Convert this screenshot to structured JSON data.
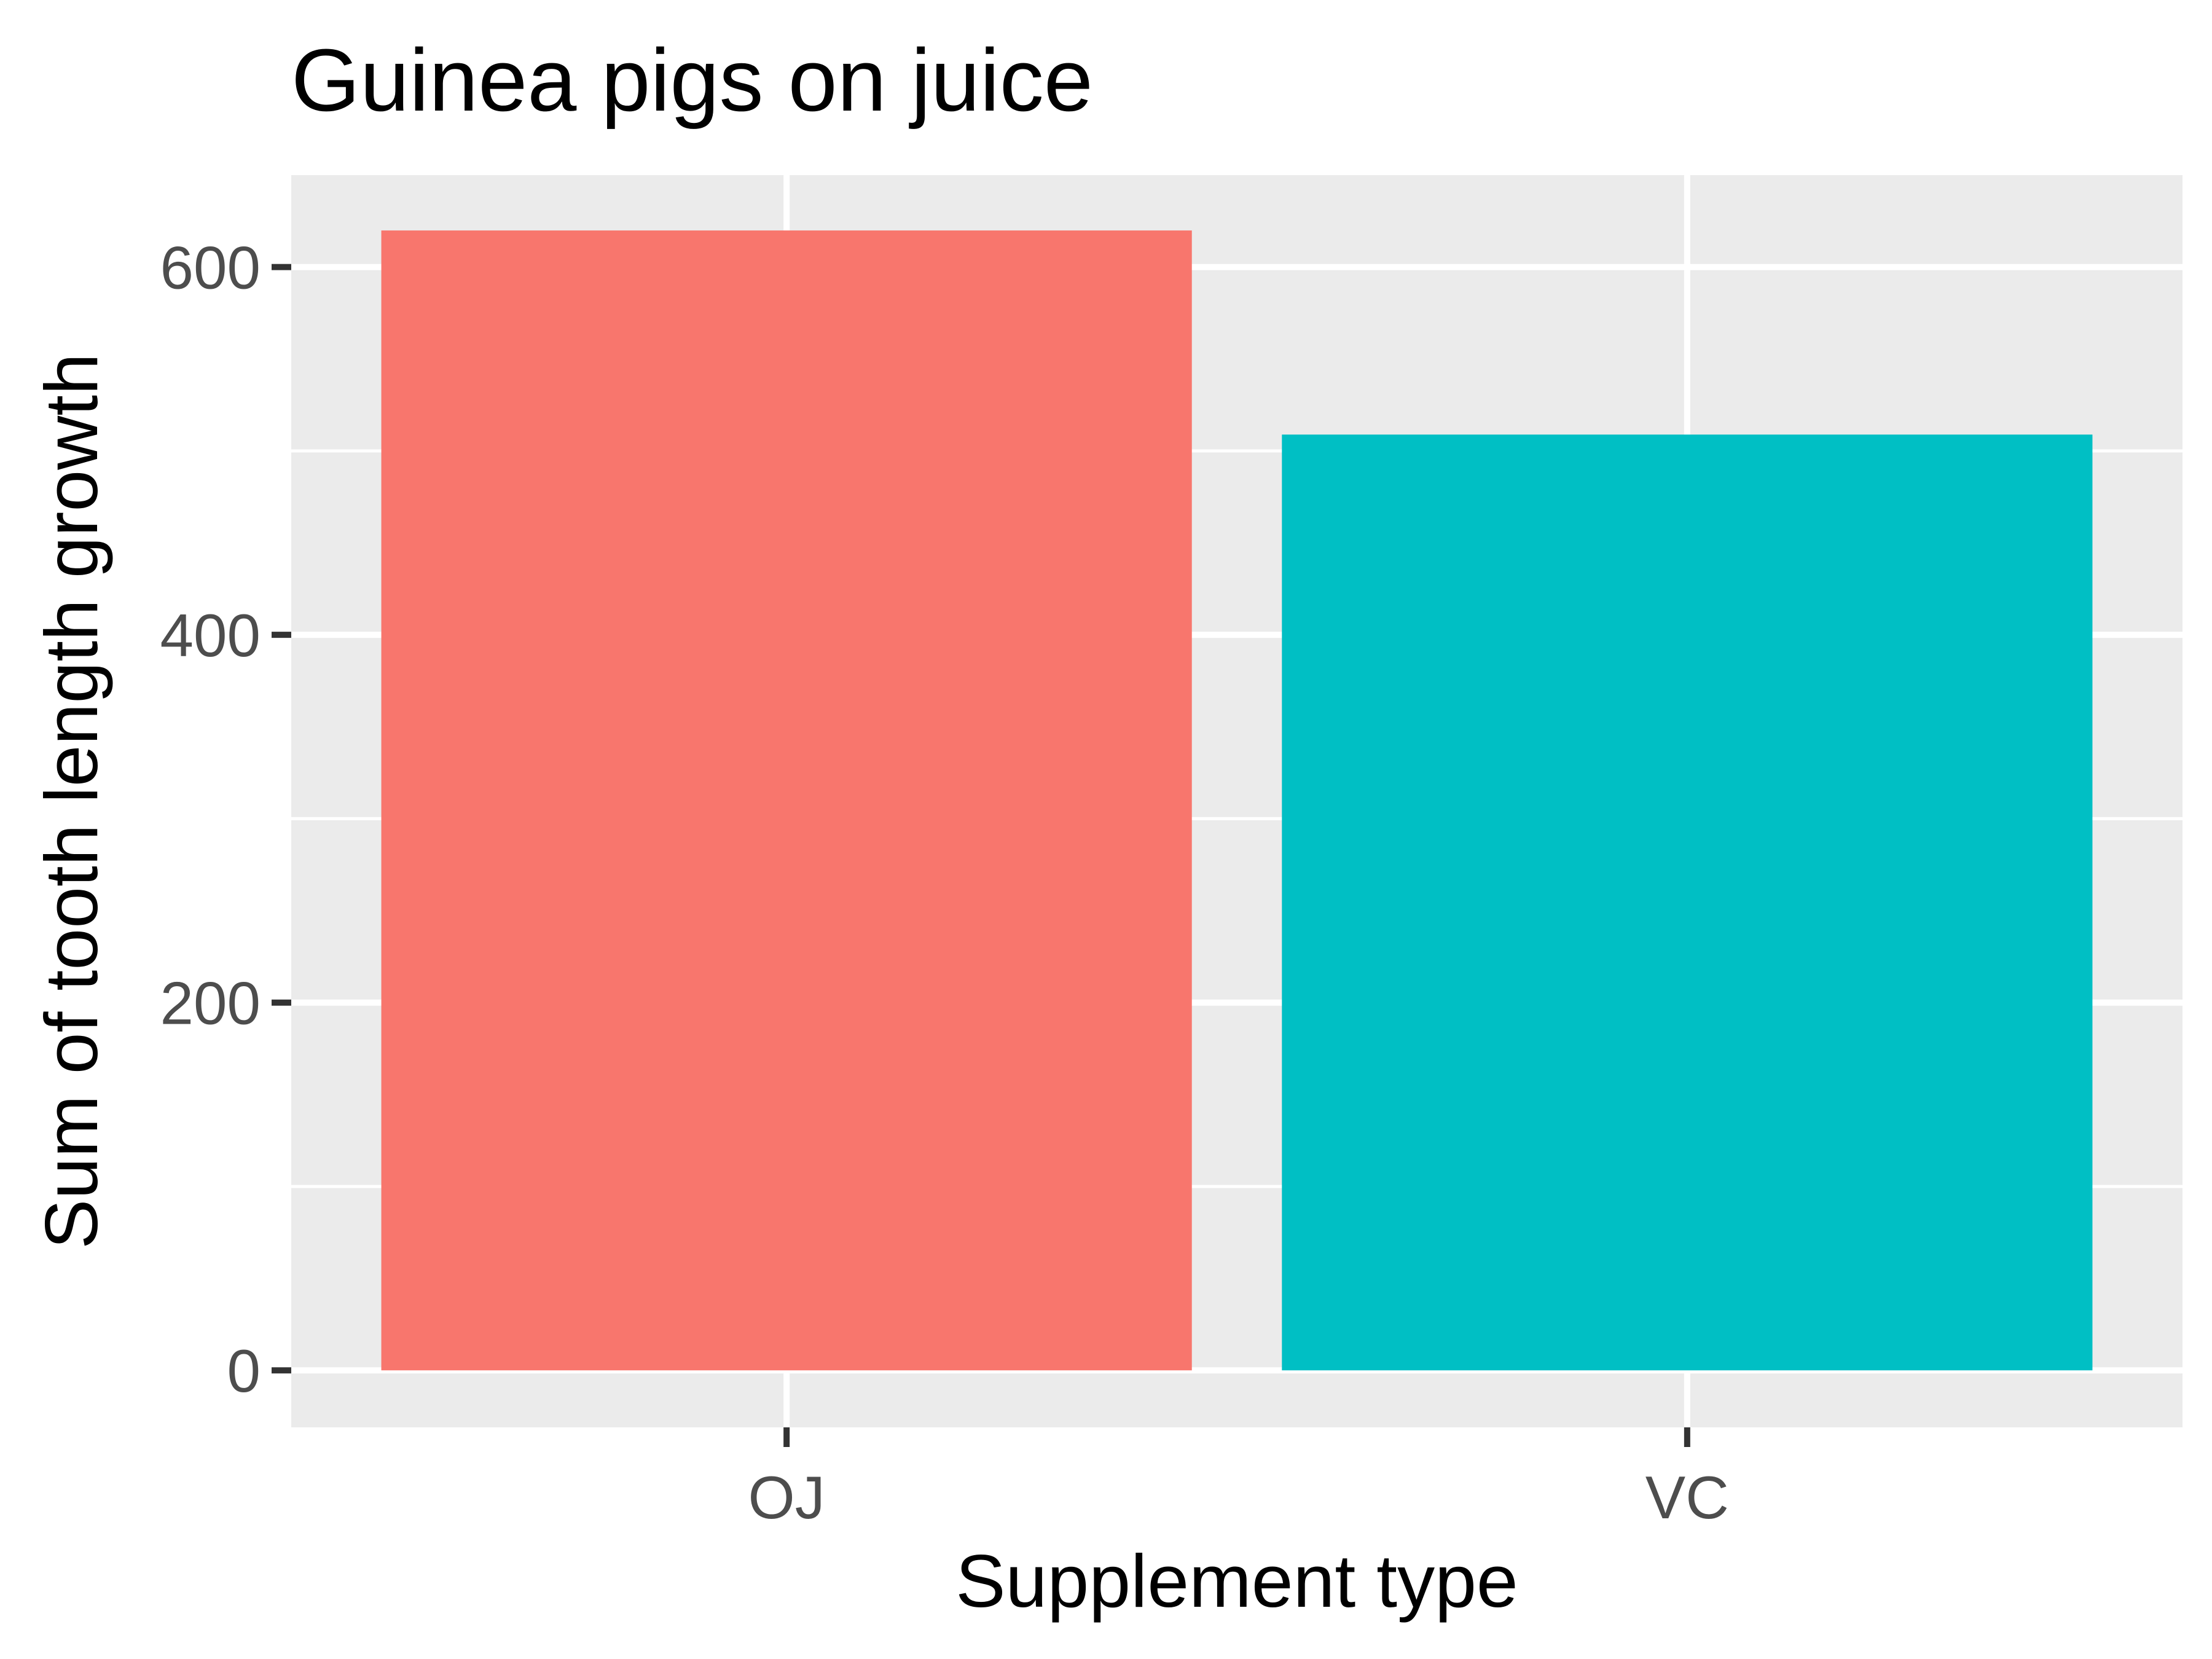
{
  "chart_data": {
    "type": "bar",
    "title": "Guinea pigs on juice",
    "xlabel": "Supplement type",
    "ylabel": "Sum of tooth length growth",
    "categories": [
      "OJ",
      "VC"
    ],
    "values": [
      619.9,
      508.9
    ],
    "ylim": [
      -31,
      650
    ],
    "yticks": [
      0,
      200,
      400,
      600
    ],
    "yminor": [
      100,
      300,
      500
    ],
    "colors": [
      "#F8766D",
      "#00BFC4"
    ],
    "grid": true,
    "legend": "none",
    "panel_background": "#EBEBEB",
    "grid_color": "#FFFFFF"
  }
}
